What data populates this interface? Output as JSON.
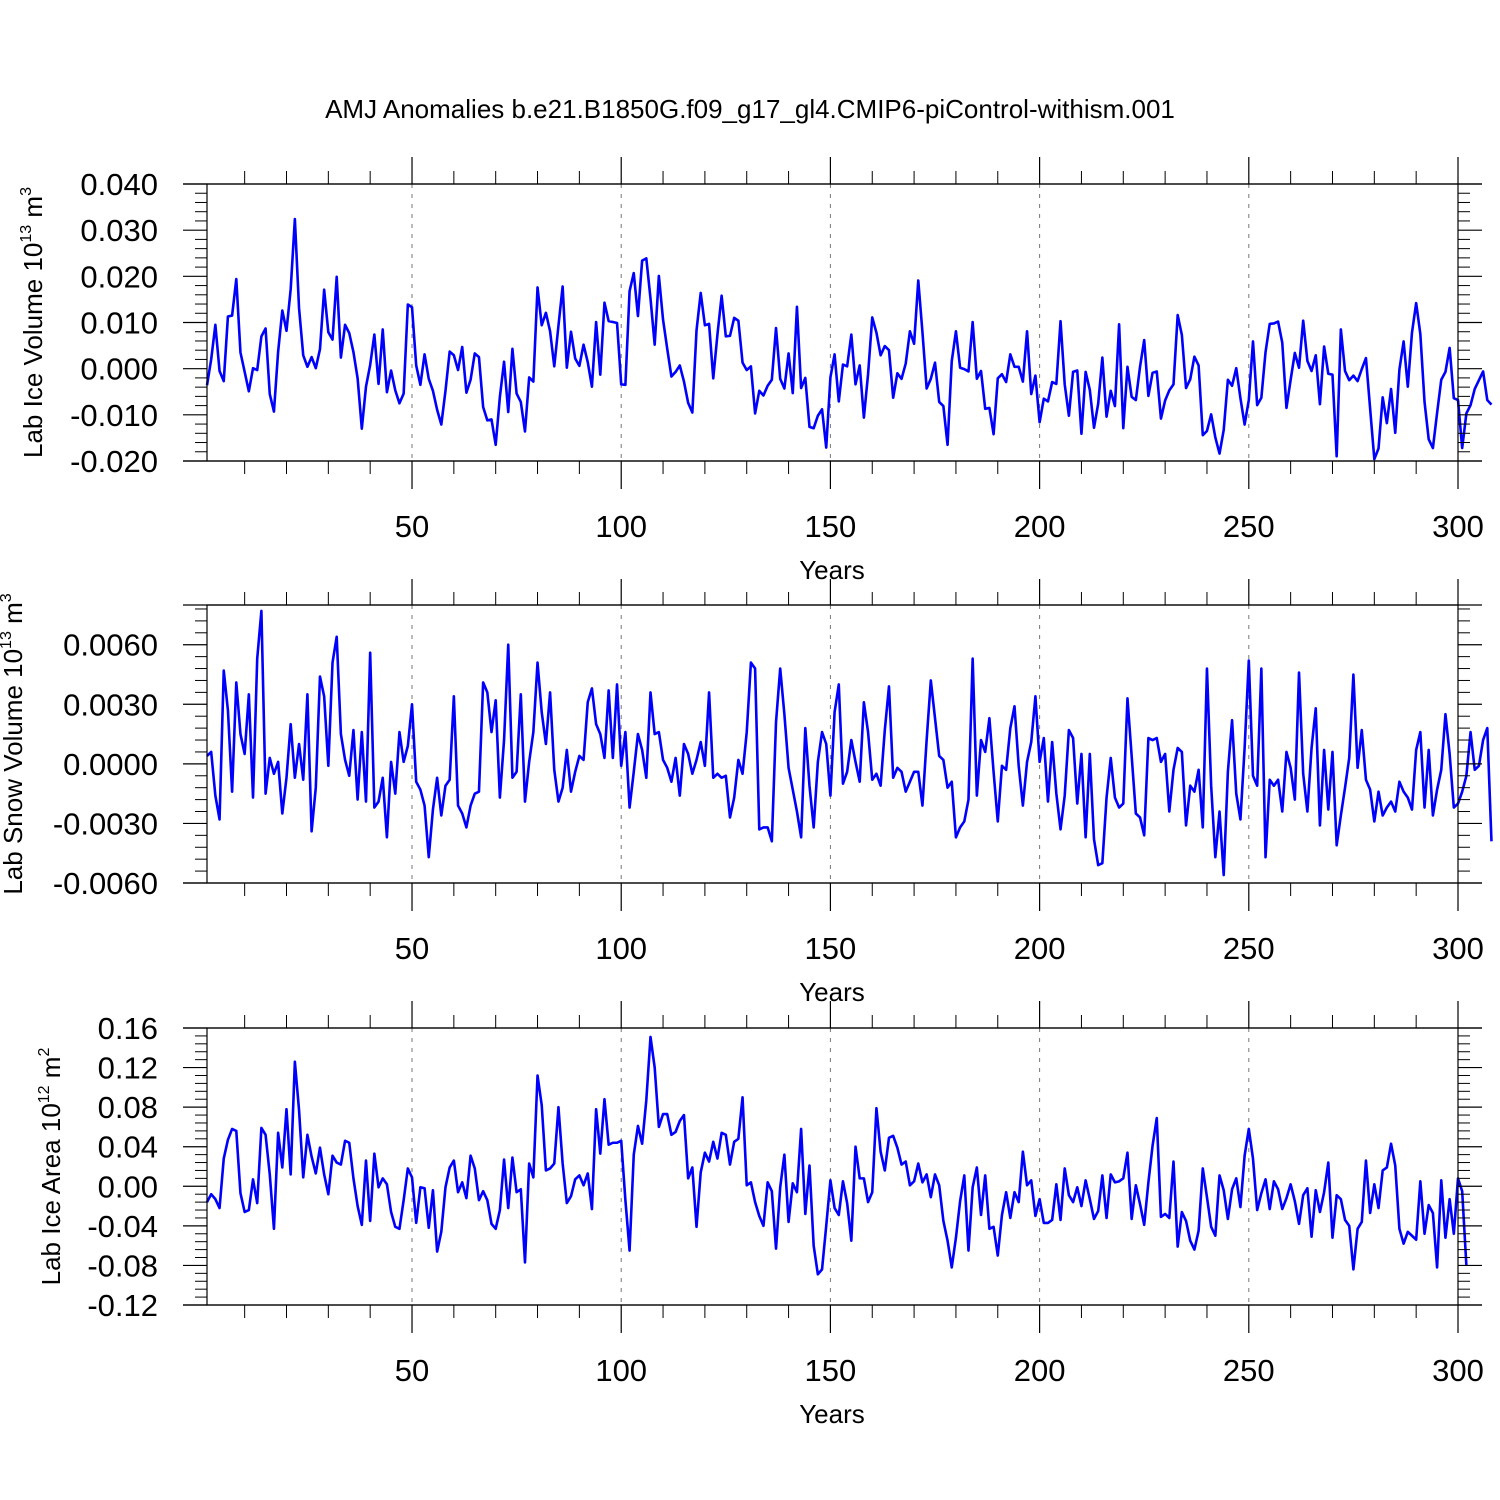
{
  "chart_data": {
    "title": "AMJ Anomalies b.e21.B1850G.f09_g17_gl4.CMIP6-piControl-withism.001",
    "line_color": "#0000ff",
    "panels": [
      {
        "type": "line",
        "ylabel": "Lab Ice Volume 10",
        "ylabel_sup": "13",
        "ylabel_unit": "m",
        "ylabel_unit_sup": "3",
        "xlabel": "Years",
        "xlim": [
          1,
          300
        ],
        "ylim": [
          -0.02,
          0.04
        ],
        "x_ticks": [
          50,
          100,
          150,
          200,
          250,
          300
        ],
        "x_tick_labels": [
          "50",
          "100",
          "150",
          "200",
          "250",
          "300"
        ],
        "y_ticks": [
          -0.02,
          -0.01,
          0.0,
          0.01,
          0.02,
          0.03,
          0.04
        ],
        "y_tick_labels": [
          "-0.020",
          "-0.010",
          "0.000",
          "0.010",
          "0.020",
          "0.030",
          "0.040"
        ],
        "x_start": 1,
        "values": [
          -0.0036,
          0.002,
          0.0095,
          -0.0005,
          -0.0027,
          0.0113,
          0.0115,
          0.0194,
          0.0035,
          -0.0007,
          -0.0049,
          0.0001,
          -0.0003,
          0.007,
          0.0087,
          -0.0055,
          -0.0093,
          0.0037,
          0.0126,
          0.0082,
          0.0172,
          0.0324,
          0.0131,
          0.0029,
          0.0004,
          0.0025,
          0.0001,
          0.0042,
          0.0171,
          0.0079,
          0.0063,
          0.0199,
          0.0024,
          0.0095,
          0.0077,
          0.0036,
          -0.0021,
          -0.013,
          -0.0039,
          0.0008,
          0.0074,
          -0.0033,
          0.0085,
          -0.0051,
          -0.0004,
          -0.0047,
          -0.0075,
          -0.0054,
          0.0139,
          0.0133,
          0.0007,
          -0.0035,
          0.0031,
          -0.0022,
          -0.0048,
          -0.0089,
          -0.0121,
          -0.0048,
          0.0037,
          0.0029,
          -0.0003,
          0.0047,
          -0.0052,
          -0.0024,
          0.0033,
          0.0025,
          -0.0083,
          -0.0112,
          -0.011,
          -0.0165,
          -0.0061,
          0.0015,
          -0.0094,
          0.0043,
          -0.0054,
          -0.0072,
          -0.0136,
          -0.0019,
          -0.0028,
          0.0176,
          0.0094,
          0.0121,
          0.0081,
          0.0005,
          0.0093,
          0.0178,
          0.0002,
          0.008,
          0.0022,
          0.0006,
          0.0052,
          0.0014,
          -0.0039,
          0.0101,
          -0.0013,
          0.0143,
          0.0103,
          0.0101,
          0.0099,
          -0.0034,
          -0.0035,
          0.0168,
          0.0207,
          0.0114,
          0.0234,
          0.0239,
          0.0152,
          0.0052,
          0.0201,
          0.0106,
          0.0043,
          -0.0017,
          -0.0007,
          0.0007,
          -0.0028,
          -0.0074,
          -0.0095,
          0.0083,
          0.0164,
          0.0094,
          0.0097,
          -0.0021,
          0.0074,
          0.0158,
          0.007,
          0.0071,
          0.011,
          0.0104,
          0.0013,
          -0.0003,
          0.0005,
          -0.0097,
          -0.0048,
          -0.0058,
          -0.0037,
          -0.0024,
          0.0088,
          -0.0022,
          -0.0043,
          0.0033,
          -0.0053,
          0.0134,
          -0.0042,
          -0.002,
          -0.0126,
          -0.0129,
          -0.0102,
          -0.0088,
          -0.0171,
          -0.0019,
          0.0031,
          -0.0071,
          0.0009,
          0.0005,
          0.0074,
          -0.0034,
          0.0007,
          -0.0106,
          -0.0012,
          0.0111,
          0.0078,
          0.0029,
          0.0049,
          0.004,
          -0.0063,
          -0.001,
          -0.0022,
          0.0011,
          0.0081,
          0.0054,
          0.0191,
          0.0079,
          -0.0043,
          -0.0022,
          0.0013,
          -0.0072,
          -0.0081,
          -0.0165,
          0.0016,
          0.0081,
          0.0002,
          -0.0001,
          -0.0006,
          0.0101,
          -0.0022,
          -0.0005,
          -0.0087,
          -0.0085,
          -0.0142,
          -0.0021,
          -0.0012,
          -0.0029,
          0.0031,
          0.0004,
          0.0004,
          -0.0028,
          0.0081,
          -0.0055,
          -0.0015,
          -0.0116,
          -0.0065,
          -0.0071,
          -0.0029,
          -0.0033,
          0.0103,
          -0.0034,
          -0.0102,
          -0.0007,
          -0.0004,
          -0.0141,
          -0.0007,
          -0.0046,
          -0.0128,
          -0.0076,
          0.0024,
          -0.0104,
          -0.0048,
          -0.0081,
          0.0096,
          -0.0129,
          0.0004,
          -0.0061,
          -0.0068,
          0.0004,
          0.0062,
          -0.0059,
          -0.0009,
          -0.0006,
          -0.0108,
          -0.0069,
          -0.0047,
          -0.0034,
          0.0116,
          0.0073,
          -0.0042,
          -0.0023,
          0.0026,
          0.0007,
          -0.0144,
          -0.0135,
          -0.0099,
          -0.0149,
          -0.0184,
          -0.0133,
          -0.0024,
          -0.0037,
          0.0001,
          -0.0064,
          -0.0121,
          -0.0068,
          0.0059,
          -0.0079,
          -0.0063,
          0.0036,
          0.0097,
          0.0098,
          0.0102,
          0.0056,
          -0.0085,
          -0.0024,
          0.0034,
          0.0002,
          0.0104,
          0.0017,
          -0.0005,
          0.0029,
          -0.0077,
          0.0048,
          -0.0011,
          -0.0013,
          -0.019,
          0.0085,
          -0.0005,
          -0.0025,
          -0.0015,
          -0.0027,
          -0.0001,
          0.0023,
          -0.0087,
          -0.0196,
          -0.0173,
          -0.0062,
          -0.0118,
          -0.0044,
          -0.0139,
          -0.0002,
          0.0059,
          -0.0039,
          0.0078,
          0.0142,
          0.0075,
          -0.0072,
          -0.0153,
          -0.0172,
          -0.0096,
          -0.0024,
          -0.0007,
          0.0045,
          -0.0064,
          -0.0068,
          -0.0172,
          -0.0097,
          -0.0079,
          -0.0044,
          -0.0025,
          -0.0006,
          -0.0068,
          -0.0078
        ]
      },
      {
        "type": "line",
        "ylabel": "Lab Snow Volume 10",
        "ylabel_sup": "13",
        "ylabel_unit": "m",
        "ylabel_unit_sup": "3",
        "xlabel": "Years",
        "xlim": [
          1,
          300
        ],
        "ylim": [
          -0.006,
          0.008
        ],
        "x_ticks": [
          50,
          100,
          150,
          200,
          250,
          300
        ],
        "x_tick_labels": [
          "50",
          "100",
          "150",
          "200",
          "250",
          "300"
        ],
        "y_ticks": [
          -0.006,
          -0.003,
          0.0,
          0.003,
          0.006
        ],
        "y_tick_labels": [
          "-0.0060",
          "-0.0030",
          "0.0000",
          "0.0030",
          "0.0060"
        ],
        "x_start": 1,
        "values": [
          0.0004,
          0.0006,
          -0.0016,
          -0.0028,
          0.0047,
          0.0027,
          -0.0014,
          0.0041,
          0.0015,
          0.0005,
          0.0035,
          -0.0017,
          0.0053,
          0.0077,
          -0.0015,
          0.0003,
          -0.0005,
          0.0001,
          -0.0025,
          -0.0007,
          0.002,
          -0.0007,
          0.001,
          -0.0008,
          0.0035,
          -0.0034,
          -0.0012,
          0.0044,
          0.0034,
          -0.0001,
          0.0051,
          0.0064,
          0.0015,
          0.0002,
          -0.0006,
          0.0017,
          -0.0018,
          0.0016,
          -0.0019,
          0.0056,
          -0.0022,
          -0.0019,
          -0.0007,
          -0.0037,
          0.0001,
          -0.0015,
          0.0016,
          0.0001,
          0.0009,
          0.003,
          -0.0009,
          -0.0013,
          -0.0021,
          -0.0047,
          -0.0023,
          -0.0007,
          -0.0026,
          -0.0011,
          -0.0008,
          0.0034,
          -0.0021,
          -0.0025,
          -0.0032,
          -0.0021,
          -0.0015,
          -0.0014,
          0.0041,
          0.0036,
          0.0016,
          0.0032,
          -0.0017,
          0.0012,
          0.006,
          -0.0007,
          -0.0004,
          0.0035,
          -0.0019,
          0.0001,
          0.0016,
          0.0051,
          0.0026,
          0.001,
          0.0036,
          -0.0003,
          -0.0019,
          -0.0012,
          0.0007,
          -0.0014,
          -0.0004,
          0.0004,
          0.0002,
          0.0031,
          0.0038,
          0.002,
          0.0015,
          0.0003,
          0.0037,
          0.0003,
          0.004,
          -0.0001,
          0.0016,
          -0.0022,
          -0.0004,
          0.0015,
          0.0007,
          -0.0007,
          0.0036,
          0.0015,
          0.0016,
          0.0002,
          -0.0002,
          -0.0009,
          0.0003,
          -0.0016,
          0.001,
          0.0005,
          -0.0005,
          0.0002,
          0.0011,
          -0.0001,
          0.0036,
          -0.0007,
          -0.0005,
          -0.0007,
          -0.0006,
          -0.0027,
          -0.0017,
          0.0002,
          -0.0005,
          0.0016,
          0.0051,
          0.0048,
          -0.0033,
          -0.0032,
          -0.0032,
          -0.0039,
          0.0021,
          0.0048,
          0.0025,
          -0.0002,
          -0.0013,
          -0.0024,
          -0.0037,
          0.0018,
          -0.0011,
          -0.0032,
          0.0001,
          0.0016,
          0.001,
          -0.0016,
          0.0026,
          0.004,
          -0.001,
          -0.0004,
          0.0012,
          0.0001,
          -0.0009,
          0.0031,
          0.0016,
          -0.0008,
          -0.0005,
          -0.0011,
          0.0017,
          0.0039,
          -0.0007,
          -0.0002,
          -0.0004,
          -0.0014,
          -0.0009,
          -0.0004,
          -0.0004,
          -0.0021,
          0.0012,
          0.0042,
          0.0023,
          0.0004,
          0.0002,
          -0.0012,
          -0.0009,
          -0.0037,
          -0.0032,
          -0.0029,
          -0.0018,
          0.0053,
          -0.0016,
          0.0012,
          0.0006,
          0.0023,
          -0.0004,
          -0.0029,
          -0.0001,
          -0.0003,
          0.0018,
          0.0029,
          -0.0001,
          -0.0021,
          0.0001,
          0.0011,
          0.0034,
          0.0001,
          0.0013,
          -0.0019,
          0.0011,
          -0.0015,
          -0.0033,
          -0.0016,
          0.0017,
          0.0013,
          -0.002,
          0.0005,
          -0.0037,
          0.0005,
          -0.0038,
          -0.0051,
          -0.005,
          -0.0017,
          0.0003,
          -0.0017,
          -0.0022,
          -0.002,
          0.0033,
          0.0004,
          -0.0025,
          -0.0027,
          -0.0036,
          0.0013,
          0.0012,
          0.0013,
          0.0001,
          0.0005,
          -0.0024,
          -0.0003,
          0.0008,
          0.0006,
          -0.0031,
          -0.0011,
          -0.0014,
          -0.0003,
          -0.0032,
          0.0048,
          -0.0011,
          -0.0047,
          -0.0024,
          -0.0056,
          -0.0004,
          0.0022,
          -0.0015,
          -0.0028,
          0.0008,
          0.0052,
          -0.0006,
          -0.0011,
          0.0048,
          -0.0047,
          -0.0008,
          -0.0011,
          -0.0008,
          -0.0024,
          0.0006,
          -0.0002,
          -0.0018,
          0.0046,
          -0.0005,
          -0.0024,
          0.0008,
          0.0028,
          -0.0031,
          0.0007,
          -0.0023,
          0.0006,
          -0.0041,
          -0.0026,
          -0.0012,
          0.0003,
          0.0045,
          -0.0002,
          0.0017,
          -0.0008,
          -0.0013,
          -0.0029,
          -0.0014,
          -0.0026,
          -0.0022,
          -0.0019,
          -0.0024,
          -0.0009,
          -0.0014,
          -0.0017,
          -0.0023,
          0.0007,
          0.0016,
          -0.0022,
          0.0007,
          -0.0026,
          -0.0013,
          -0.0003,
          0.0025,
          0.0005,
          -0.0022,
          -0.002,
          -0.0014,
          -0.0006,
          0.0016,
          -0.0003,
          -0.0001,
          0.0012,
          0.0018,
          -0.0039
        ]
      },
      {
        "type": "line",
        "ylabel": "Lab Ice Area 10",
        "ylabel_sup": "12",
        "ylabel_unit": "m",
        "ylabel_unit_sup": "2",
        "xlabel": "Years",
        "xlim": [
          1,
          300
        ],
        "ylim": [
          -0.12,
          0.16
        ],
        "x_ticks": [
          50,
          100,
          150,
          200,
          250,
          300
        ],
        "x_tick_labels": [
          "50",
          "100",
          "150",
          "200",
          "250",
          "300"
        ],
        "y_ticks": [
          -0.12,
          -0.08,
          -0.04,
          0.0,
          0.04,
          0.08,
          0.12,
          0.16
        ],
        "y_tick_labels": [
          "-0.12",
          "-0.08",
          "-0.04",
          "0.00",
          "0.04",
          "0.08",
          "0.12",
          "0.16"
        ],
        "x_start": 1,
        "values": [
          -0.016,
          -0.008,
          -0.013,
          -0.022,
          0.028,
          0.047,
          0.058,
          0.056,
          -0.007,
          -0.026,
          -0.024,
          0.007,
          -0.017,
          0.059,
          0.052,
          0.012,
          -0.043,
          0.054,
          0.019,
          0.078,
          0.012,
          0.126,
          0.077,
          0.009,
          0.052,
          0.03,
          0.013,
          0.039,
          0.012,
          -0.008,
          0.031,
          0.024,
          0.022,
          0.046,
          0.044,
          0.008,
          -0.02,
          -0.039,
          0.026,
          -0.035,
          0.033,
          -0.001,
          0.008,
          0.002,
          -0.026,
          -0.041,
          -0.043,
          -0.014,
          0.018,
          0.009,
          -0.037,
          -0.001,
          -0.002,
          -0.042,
          -0.004,
          -0.066,
          -0.046,
          -0.001,
          0.019,
          0.026,
          -0.006,
          0.004,
          -0.012,
          0.031,
          0.018,
          -0.014,
          -0.005,
          -0.014,
          -0.038,
          -0.043,
          -0.024,
          0.027,
          -0.022,
          0.029,
          -0.006,
          -0.003,
          -0.077,
          0.023,
          0.009,
          0.112,
          0.082,
          0.016,
          0.018,
          0.023,
          0.08,
          0.023,
          -0.017,
          -0.01,
          0.007,
          0.011,
          0.001,
          0.013,
          -0.023,
          0.078,
          0.033,
          0.088,
          0.042,
          0.044,
          0.044,
          0.046,
          -0.014,
          -0.065,
          0.032,
          0.061,
          0.043,
          0.087,
          0.151,
          0.12,
          0.06,
          0.073,
          0.073,
          0.052,
          0.055,
          0.066,
          0.072,
          0.008,
          0.019,
          -0.041,
          0.014,
          0.034,
          0.025,
          0.045,
          0.028,
          0.054,
          0.052,
          0.022,
          0.045,
          0.048,
          0.09,
          0.001,
          0.004,
          -0.016,
          -0.03,
          -0.04,
          0.004,
          -0.005,
          -0.063,
          -0.001,
          0.032,
          -0.036,
          0.003,
          -0.006,
          0.058,
          -0.028,
          0.021,
          -0.06,
          -0.089,
          -0.084,
          -0.04,
          0.006,
          -0.022,
          -0.029,
          0.005,
          -0.017,
          -0.055,
          0.04,
          0.008,
          0.008,
          -0.016,
          -0.006,
          0.079,
          0.035,
          0.016,
          0.049,
          0.051,
          0.039,
          0.022,
          0.025,
          0.001,
          0.005,
          0.023,
          0.004,
          0.012,
          -0.011,
          0.012,
          0.001,
          -0.035,
          -0.055,
          -0.082,
          -0.052,
          -0.015,
          0.011,
          -0.065,
          -0.001,
          0.019,
          -0.029,
          0.011,
          -0.043,
          -0.041,
          -0.07,
          -0.029,
          -0.006,
          -0.032,
          -0.006,
          -0.016,
          0.035,
          0.001,
          0.006,
          -0.03,
          -0.013,
          -0.037,
          -0.037,
          -0.034,
          0.002,
          -0.034,
          0.018,
          -0.009,
          -0.016,
          -0.001,
          -0.02,
          0.006,
          -0.013,
          -0.033,
          -0.025,
          0.011,
          -0.032,
          0.012,
          0.004,
          0.005,
          0.008,
          0.034,
          -0.033,
          0.001,
          -0.018,
          -0.039,
          0.004,
          0.041,
          0.069,
          -0.031,
          -0.028,
          -0.032,
          0.025,
          -0.061,
          -0.026,
          -0.035,
          -0.055,
          -0.064,
          -0.045,
          0.018,
          -0.011,
          -0.041,
          -0.05,
          0.011,
          -0.004,
          -0.033,
          -0.003,
          0.008,
          -0.021,
          0.031,
          0.058,
          0.028,
          -0.024,
          -0.007,
          0.007,
          -0.023,
          0.005,
          -0.003,
          -0.023,
          -0.012,
          0.002,
          -0.015,
          -0.038,
          -0.009,
          -0.002,
          -0.051,
          -0.004,
          -0.026,
          -0.006,
          0.024,
          -0.052,
          -0.009,
          -0.013,
          -0.034,
          -0.04,
          -0.084,
          -0.043,
          -0.036,
          0.026,
          -0.027,
          0.002,
          -0.022,
          0.016,
          0.019,
          0.043,
          0.021,
          -0.043,
          -0.058,
          -0.046,
          -0.05,
          -0.054,
          0.005,
          -0.048,
          -0.019,
          -0.027,
          -0.082,
          0.006,
          -0.052,
          -0.013,
          -0.048,
          0.008,
          -0.005,
          -0.08
        ]
      }
    ]
  }
}
